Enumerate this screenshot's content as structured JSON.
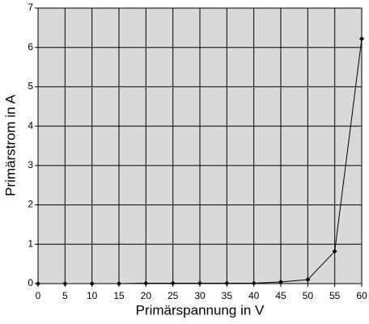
{
  "chart_data": {
    "type": "line",
    "x_label": "Primärspannung in V",
    "y_label": "Primärstrom in A",
    "x": [
      0,
      5,
      10,
      15,
      20,
      25,
      30,
      35,
      40,
      45,
      50,
      55,
      60
    ],
    "values": [
      0,
      0,
      0,
      0,
      0.01,
      0.01,
      0.01,
      0.01,
      0.01,
      0.04,
      0.1,
      0.82,
      6.22
    ],
    "color": "#000000",
    "plot_background": "#d9d9d9",
    "xlim": [
      0,
      60
    ],
    "xticks": [
      0,
      5,
      10,
      15,
      20,
      25,
      30,
      35,
      40,
      45,
      50,
      55,
      60
    ],
    "ylim": [
      0,
      7
    ],
    "yticks": [
      0,
      1,
      2,
      3,
      4,
      5,
      6,
      7
    ],
    "grid": true
  }
}
